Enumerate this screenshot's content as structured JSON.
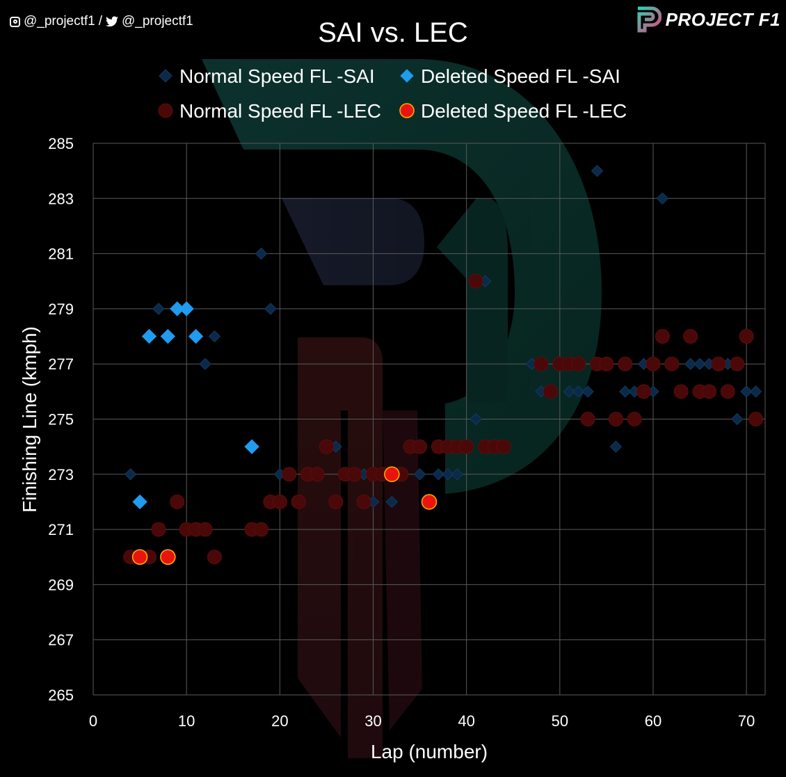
{
  "social": {
    "instagram_handle": "@_projectf1",
    "separator": "/",
    "twitter_handle": "@_projectf1"
  },
  "brand": {
    "name": "PROJECT F1"
  },
  "chart_data": {
    "type": "scatter",
    "title": "SAI vs. LEC",
    "xlabel": "Lap (number)",
    "ylabel": "Finishing Line (kmph)",
    "xlim": [
      0,
      72
    ],
    "ylim": [
      265,
      285
    ],
    "xticks": [
      0,
      10,
      20,
      30,
      40,
      50,
      60,
      70
    ],
    "yticks": [
      265,
      267,
      269,
      271,
      273,
      275,
      277,
      279,
      281,
      283,
      285
    ],
    "grid": true,
    "legend_position": "top",
    "series": [
      {
        "name": "Normal Speed FL -SAI",
        "marker": "diamond",
        "color": "#0b2a4a",
        "points": [
          [
            4,
            273
          ],
          [
            7,
            279
          ],
          [
            12,
            277
          ],
          [
            13,
            278
          ],
          [
            18,
            281
          ],
          [
            19,
            279
          ],
          [
            20,
            273
          ],
          [
            23,
            273
          ],
          [
            26,
            274
          ],
          [
            29,
            273
          ],
          [
            30,
            272
          ],
          [
            32,
            272
          ],
          [
            34,
            274
          ],
          [
            35,
            273
          ],
          [
            37,
            273
          ],
          [
            38,
            273
          ],
          [
            39,
            273
          ],
          [
            41,
            275
          ],
          [
            42,
            280
          ],
          [
            43,
            274
          ],
          [
            47,
            277
          ],
          [
            48,
            276
          ],
          [
            51,
            276
          ],
          [
            52,
            276
          ],
          [
            53,
            276
          ],
          [
            54,
            284
          ],
          [
            55,
            277
          ],
          [
            56,
            274
          ],
          [
            57,
            276
          ],
          [
            58,
            276
          ],
          [
            59,
            277
          ],
          [
            60,
            276
          ],
          [
            61,
            283
          ],
          [
            63,
            276
          ],
          [
            64,
            277
          ],
          [
            65,
            277
          ],
          [
            66,
            277
          ],
          [
            68,
            277
          ],
          [
            69,
            275
          ],
          [
            70,
            276
          ],
          [
            71,
            276
          ]
        ]
      },
      {
        "name": "Deleted Speed FL -SAI",
        "marker": "diamond",
        "color": "#1f9bf0",
        "points": [
          [
            5,
            272
          ],
          [
            6,
            278
          ],
          [
            8,
            278
          ],
          [
            9,
            279
          ],
          [
            10,
            279
          ],
          [
            11,
            278
          ],
          [
            17,
            274
          ]
        ]
      },
      {
        "name": "Normal Speed FL -LEC",
        "marker": "circle",
        "color": "#4a0808",
        "points": [
          [
            4,
            270
          ],
          [
            6,
            270
          ],
          [
            7,
            271
          ],
          [
            9,
            272
          ],
          [
            10,
            271
          ],
          [
            11,
            271
          ],
          [
            12,
            271
          ],
          [
            13,
            270
          ],
          [
            17,
            271
          ],
          [
            18,
            271
          ],
          [
            19,
            272
          ],
          [
            20,
            272
          ],
          [
            21,
            273
          ],
          [
            22,
            272
          ],
          [
            23,
            273
          ],
          [
            24,
            273
          ],
          [
            25,
            274
          ],
          [
            26,
            272
          ],
          [
            27,
            273
          ],
          [
            28,
            273
          ],
          [
            29,
            272
          ],
          [
            30,
            273
          ],
          [
            31,
            273
          ],
          [
            33,
            273
          ],
          [
            34,
            274
          ],
          [
            35,
            274
          ],
          [
            37,
            274
          ],
          [
            38,
            274
          ],
          [
            39,
            274
          ],
          [
            40,
            274
          ],
          [
            41,
            280
          ],
          [
            42,
            274
          ],
          [
            43,
            274
          ],
          [
            44,
            274
          ],
          [
            48,
            277
          ],
          [
            49,
            276
          ],
          [
            50,
            277
          ],
          [
            51,
            277
          ],
          [
            52,
            277
          ],
          [
            53,
            275
          ],
          [
            54,
            277
          ],
          [
            55,
            277
          ],
          [
            56,
            275
          ],
          [
            57,
            277
          ],
          [
            58,
            275
          ],
          [
            59,
            276
          ],
          [
            60,
            277
          ],
          [
            61,
            278
          ],
          [
            62,
            277
          ],
          [
            63,
            276
          ],
          [
            64,
            278
          ],
          [
            65,
            276
          ],
          [
            66,
            276
          ],
          [
            67,
            277
          ],
          [
            68,
            276
          ],
          [
            69,
            277
          ],
          [
            70,
            278
          ],
          [
            71,
            275
          ]
        ]
      },
      {
        "name": "Deleted Speed FL -LEC",
        "marker": "circle",
        "color": "#e8150f",
        "points": [
          [
            5,
            270
          ],
          [
            8,
            270
          ],
          [
            32,
            273
          ],
          [
            36,
            272
          ]
        ]
      }
    ]
  }
}
